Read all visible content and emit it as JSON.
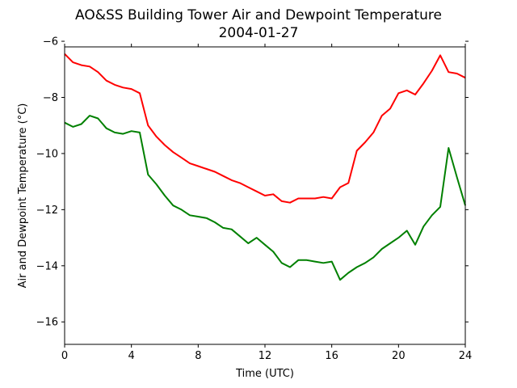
{
  "chart_data": {
    "type": "line",
    "title": "AO&SS Building Tower Air and Dewpoint Temperature",
    "subtitle": "2004-01-27",
    "xlabel": "Time (UTC)",
    "ylabel": "Air and Dewpoint Temperature (°C)",
    "xlim": [
      0,
      24
    ],
    "ylim": [
      -16.8,
      -6.2
    ],
    "xticks": [
      0,
      4,
      8,
      12,
      16,
      20,
      24
    ],
    "yticks": [
      -16,
      -14,
      -12,
      -10,
      -8,
      -6
    ],
    "grid": false,
    "legend": "none",
    "x": [
      0,
      0.5,
      1,
      1.5,
      2,
      2.5,
      3,
      3.5,
      4,
      4.5,
      5,
      5.5,
      6,
      6.5,
      7,
      7.5,
      8,
      8.5,
      9,
      9.5,
      10,
      10.5,
      11,
      11.5,
      12,
      12.5,
      13,
      13.5,
      14,
      14.5,
      15,
      15.5,
      16,
      16.5,
      17,
      17.5,
      18,
      18.5,
      19,
      19.5,
      20,
      20.5,
      21,
      21.5,
      22,
      22.5,
      23,
      23.5,
      24
    ],
    "series": [
      {
        "color": "#ff0000",
        "values": [
          -6.45,
          -6.75,
          -6.85,
          -6.9,
          -7.1,
          -7.4,
          -7.55,
          -7.65,
          -7.7,
          -7.85,
          -9.0,
          -9.4,
          -9.7,
          -9.95,
          -10.15,
          -10.35,
          -10.45,
          -10.55,
          -10.65,
          -10.8,
          -10.95,
          -11.05,
          -11.2,
          -11.35,
          -11.5,
          -11.45,
          -11.7,
          -11.75,
          -11.6,
          -11.6,
          -11.6,
          -11.55,
          -11.6,
          -11.2,
          -11.05,
          -9.9,
          -9.6,
          -9.25,
          -8.65,
          -8.4,
          -7.85,
          -7.75,
          -7.9,
          -7.5,
          -7.05,
          -6.5,
          -7.1,
          -7.15,
          -7.3
        ]
      },
      {
        "color": "#008000",
        "values": [
          -8.9,
          -9.05,
          -8.95,
          -8.65,
          -8.75,
          -9.1,
          -9.25,
          -9.3,
          -9.2,
          -9.25,
          -10.75,
          -11.1,
          -11.5,
          -11.85,
          -12.0,
          -12.2,
          -12.25,
          -12.3,
          -12.45,
          -12.65,
          -12.7,
          -12.95,
          -13.2,
          -13.0,
          -13.25,
          -13.5,
          -13.9,
          -14.05,
          -13.8,
          -13.8,
          -13.85,
          -13.9,
          -13.85,
          -14.5,
          -14.25,
          -14.05,
          -13.9,
          -13.7,
          -13.4,
          -13.2,
          -13.0,
          -12.75,
          -13.25,
          -12.6,
          -12.2,
          -11.9,
          -9.8,
          -10.85,
          -11.85
        ]
      }
    ]
  }
}
